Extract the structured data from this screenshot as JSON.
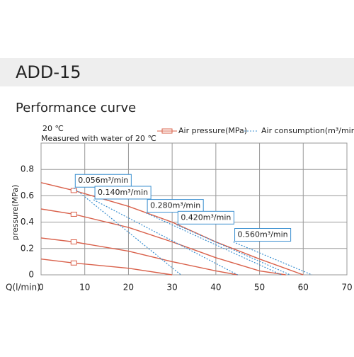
{
  "header": "ADD-15",
  "chart_data": {
    "type": "line",
    "title": "Performance curve",
    "notes": [
      "20 ℃",
      "Measured with water of 20 ℃"
    ],
    "legend": [
      "Air pressure(MPa)",
      "Air consumption(m³/min)"
    ],
    "x_label": "Q(l/min)",
    "y_label": "pressure(MPa)",
    "xlim": [
      0,
      70
    ],
    "xticks": [
      0,
      10,
      20,
      30,
      40,
      50,
      60,
      70
    ],
    "ylim": [
      0,
      1.0
    ],
    "yticks": [
      0,
      0.2,
      0.4,
      0.6,
      0.8
    ],
    "grid": true,
    "series": [
      {
        "kind": "pressure",
        "color": "#d9604a",
        "x": [
          0,
          7.5,
          20,
          30,
          40,
          50,
          60
        ],
        "values": [
          0.7,
          0.64,
          0.52,
          0.4,
          0.25,
          0.12,
          0
        ]
      },
      {
        "kind": "pressure",
        "color": "#d9604a",
        "x": [
          0,
          7.5,
          20,
          30,
          40,
          50,
          56
        ],
        "values": [
          0.5,
          0.46,
          0.36,
          0.25,
          0.13,
          0.03,
          0
        ]
      },
      {
        "kind": "pressure",
        "color": "#d9604a",
        "x": [
          0,
          7.5,
          20,
          30,
          40,
          45
        ],
        "values": [
          0.28,
          0.25,
          0.18,
          0.1,
          0.03,
          0
        ]
      },
      {
        "kind": "pressure",
        "color": "#d9604a",
        "x": [
          0,
          7.5,
          20,
          30
        ],
        "values": [
          0.12,
          0.09,
          0.05,
          0
        ]
      },
      {
        "kind": "consumption",
        "name": "0.056m³/min",
        "color": "#3a8fd0",
        "x": [
          7.5,
          32
        ],
        "values": [
          0.66,
          0
        ]
      },
      {
        "kind": "consumption",
        "name": "0.140m³/min",
        "color": "#3a8fd0",
        "x": [
          12,
          45
        ],
        "values": [
          0.57,
          0
        ]
      },
      {
        "kind": "consumption",
        "name": "0.280m³/min",
        "color": "#3a8fd0",
        "x": [
          24,
          55
        ],
        "values": [
          0.47,
          0
        ]
      },
      {
        "kind": "consumption",
        "name": "0.420m³/min",
        "color": "#3a8fd0",
        "x": [
          31,
          57
        ],
        "values": [
          0.38,
          0
        ]
      },
      {
        "kind": "consumption",
        "name": "0.560m³/min",
        "color": "#3a8fd0",
        "x": [
          44,
          62
        ],
        "values": [
          0.25,
          0
        ]
      }
    ]
  }
}
